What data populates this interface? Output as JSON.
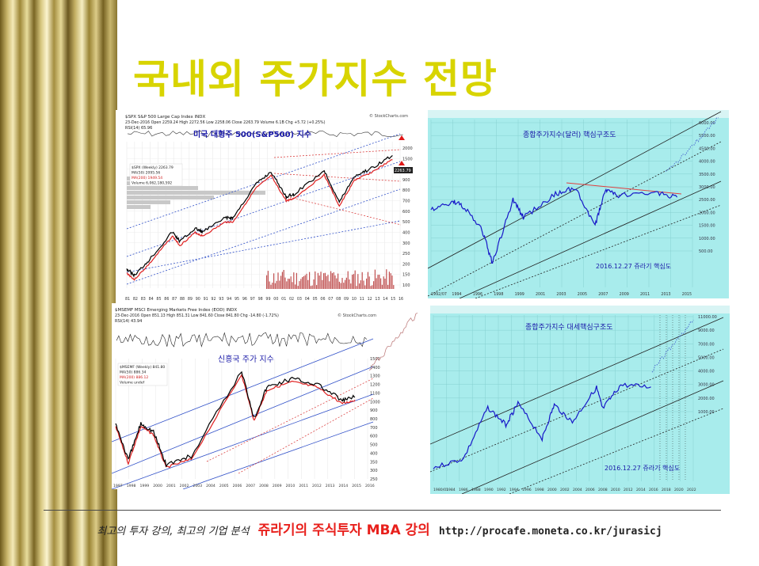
{
  "slide": {
    "title": "국내외 주가지수 전망",
    "footer": {
      "left": "최고의 투자 강의, 최고의 기업 분석",
      "center": "쥬라기의 주식투자 MBA 강의",
      "url": "http://procafe.moneta.co.kr/jurasicj"
    }
  },
  "colors": {
    "title": "#d8d400",
    "footer_center": "#e8201c",
    "chart_bg_cyan": "#a8ecec",
    "label_blue": "#1a1aa8",
    "price_line": "#000000",
    "ma_line": "#e02020"
  },
  "chart_data": [
    {
      "type": "line",
      "name_printed": "$SPX S&P 500 Large Cap Index INDX",
      "annotation": "미국 대형주 500(S&P500) 지수",
      "header_line1": "$SPX S&P 500 Large Cap Index INDX",
      "header_line2": "23-Dec-2016   Open 2259.24  High 2272.56  Low 2258.06  Close 2263.79  Volume 6.1B  Chg +5.72 (+0.25%)",
      "indicator": "RSI(14) 65.96",
      "legend": [
        "$SPX (Weekly) 2263.79",
        "MA(50) 2095.56",
        "MA(200) 1949.54",
        "Volume 6,062,180,592"
      ],
      "watermark": "© StockCharts.com",
      "last_value": "2263.79",
      "y_ticks": [
        "2000",
        "1500",
        "1000",
        "900",
        "800",
        "700",
        "600",
        "500",
        "400",
        "300",
        "250",
        "200",
        "150",
        "100"
      ],
      "x_ticks": [
        "81",
        "82",
        "83",
        "84",
        "85",
        "86",
        "87",
        "88",
        "89",
        "90",
        "91",
        "92",
        "93",
        "94",
        "95",
        "96",
        "97",
        "98",
        "99",
        "00",
        "01",
        "02",
        "03",
        "04",
        "05",
        "06",
        "07",
        "08",
        "09",
        "10",
        "11",
        "12",
        "13",
        "14",
        "15",
        "16"
      ],
      "x": [
        1981,
        1982,
        1984,
        1987,
        1988,
        1990,
        1991,
        1994,
        1995,
        1998,
        2000,
        2002,
        2003,
        2007,
        2009,
        2011,
        2013,
        2016
      ],
      "y": [
        130,
        110,
        165,
        330,
        260,
        360,
        330,
        470,
        470,
        1100,
        1500,
        800,
        850,
        1550,
        700,
        1350,
        1600,
        2263
      ]
    },
    {
      "type": "line",
      "name_printed": "종합주가지수(달러)",
      "annotation": "종합주가지수(달러) 핵심구조도",
      "date_note": "2016.12.27 쥬라기 핵심도",
      "y_ticks": [
        "6000.00",
        "5500.00",
        "4500.00",
        "4000.00",
        "3500.00",
        "3000.00",
        "2500.00",
        "2000.00",
        "1500.00",
        "1000.00",
        "500.00"
      ],
      "x_ticks": [
        "1992/07",
        "1994",
        "1996",
        "1998",
        "1999",
        "2001",
        "2003",
        "2005",
        "2007",
        "2009",
        "2011",
        "2013",
        "2015"
      ],
      "x": [
        1992,
        1994,
        1995,
        1997,
        1998,
        2000,
        2001,
        2004,
        2006,
        2008,
        2009,
        2010,
        2014,
        2016
      ],
      "y": [
        600,
        750,
        700,
        350,
        150,
        800,
        500,
        900,
        1100,
        400,
        1050,
        900,
        950,
        850
      ]
    },
    {
      "type": "line",
      "name_printed": "$MSEMF MSCI Emerging Markets Free Index (EOD) INDX",
      "annotation": "신흥국 주가 지수",
      "header_line2": "23-Dec-2016   Open 851.13  High 851.31  Low 841.60  Close 841.80  Chg -14.80 (-1.72%)",
      "indicator": "RSI(14) 43.94",
      "legend": [
        "$MSEMF (Weekly) 841.80",
        "MA(50) 886.34",
        "MA(200) 886.12",
        "Volume undef"
      ],
      "watermark": "© StockCharts.com",
      "y_ticks": [
        "1500",
        "1400",
        "1300",
        "1200",
        "1100",
        "1000",
        "900",
        "800",
        "700",
        "600",
        "500",
        "400",
        "350",
        "300",
        "250"
      ],
      "x_ticks": [
        "1997",
        "1998",
        "1999",
        "2000",
        "2001",
        "2002",
        "2003",
        "2004",
        "2005",
        "2006",
        "2007",
        "2008",
        "2009",
        "2010",
        "2011",
        "2012",
        "2013",
        "2014",
        "2015",
        "2016"
      ],
      "x": [
        1997,
        1998,
        1999,
        2000,
        2001,
        2003,
        2007,
        2008,
        2009,
        2011,
        2013,
        2015,
        2016
      ],
      "y": [
        550,
        300,
        550,
        480,
        280,
        320,
        1300,
        600,
        1000,
        1150,
        1050,
        800,
        850
      ]
    },
    {
      "type": "line",
      "name_printed": "종합주가지수",
      "annotation": "종합주가지수 대세핵심구조도",
      "date_note": "2016.12.27 쥬라기 핵심도",
      "y_ticks": [
        "11000.00",
        "9000.00",
        "7000.00",
        "5000.00",
        "4000.00",
        "3000.00",
        "2000.00",
        "1000.00"
      ],
      "x_ticks": [
        "1980/01",
        "1984",
        "1986",
        "1988",
        "1990",
        "1992",
        "1994",
        "1996",
        "1998",
        "2000",
        "2002",
        "2004",
        "2006",
        "2008",
        "2010",
        "2012",
        "2014",
        "2016",
        "2018",
        "2020",
        "2022"
      ],
      "x": [
        1980,
        1985,
        1989,
        1992,
        1994,
        1998,
        2000,
        2003,
        2007,
        2008,
        2011,
        2016
      ],
      "y": [
        100,
        140,
        950,
        500,
        1100,
        300,
        1050,
        550,
        2000,
        900,
        2200,
        2042
      ]
    }
  ]
}
